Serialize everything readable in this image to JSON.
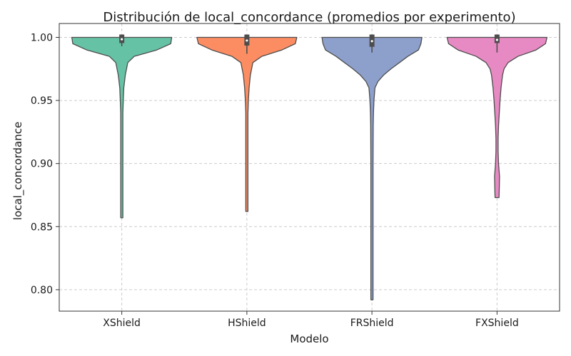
{
  "chart_data": {
    "type": "violin",
    "title": "Distribución de local_concordance (promedios por experimento)",
    "xlabel": "Modelo",
    "ylabel": "local_concordance",
    "ylim": [
      0.783,
      1.011
    ],
    "yticks": [
      0.8,
      0.85,
      0.9,
      0.95,
      1.0
    ],
    "ytick_labels": [
      "0.80",
      "0.85",
      "0.90",
      "0.95",
      "1.00"
    ],
    "grid": true,
    "categories": [
      "XShield",
      "HShield",
      "FRShield",
      "FXShield"
    ],
    "series": [
      {
        "category": "XShield",
        "color": "#66c2a5",
        "min": 0.857,
        "max": 1.0,
        "q1": 0.9955,
        "median": 0.9985,
        "q3": 1.0,
        "whisker_low": 0.993,
        "whisker_high": 1.0,
        "density_profile": [
          [
            1.0,
            1.0
          ],
          [
            0.995,
            0.98
          ],
          [
            0.99,
            0.7
          ],
          [
            0.985,
            0.25
          ],
          [
            0.98,
            0.12
          ],
          [
            0.97,
            0.07
          ],
          [
            0.96,
            0.04
          ],
          [
            0.95,
            0.03
          ],
          [
            0.94,
            0.015
          ],
          [
            0.93,
            0.008
          ],
          [
            0.9,
            0.006
          ],
          [
            0.87,
            0.004
          ],
          [
            0.857,
            0.004
          ]
        ]
      },
      {
        "category": "HShield",
        "color": "#fc8d62",
        "min": 0.862,
        "max": 1.0,
        "q1": 0.9935,
        "median": 0.9975,
        "q3": 1.0,
        "whisker_low": 0.987,
        "whisker_high": 1.0,
        "density_profile": [
          [
            1.0,
            1.0
          ],
          [
            0.995,
            0.97
          ],
          [
            0.99,
            0.7
          ],
          [
            0.985,
            0.3
          ],
          [
            0.98,
            0.12
          ],
          [
            0.97,
            0.07
          ],
          [
            0.96,
            0.045
          ],
          [
            0.95,
            0.03
          ],
          [
            0.94,
            0.018
          ],
          [
            0.93,
            0.012
          ],
          [
            0.9,
            0.008
          ],
          [
            0.87,
            0.006
          ],
          [
            0.862,
            0.006
          ]
        ]
      },
      {
        "category": "FRShield",
        "color": "#8da0cb",
        "min": 0.792,
        "max": 1.0,
        "q1": 0.9925,
        "median": 0.997,
        "q3": 1.0,
        "whisker_low": 0.988,
        "whisker_high": 1.0,
        "density_profile": [
          [
            1.0,
            1.0
          ],
          [
            0.995,
            0.98
          ],
          [
            0.99,
            0.93
          ],
          [
            0.985,
            0.72
          ],
          [
            0.98,
            0.55
          ],
          [
            0.975,
            0.38
          ],
          [
            0.97,
            0.23
          ],
          [
            0.965,
            0.12
          ],
          [
            0.96,
            0.06
          ],
          [
            0.95,
            0.04
          ],
          [
            0.94,
            0.03
          ],
          [
            0.93,
            0.025
          ],
          [
            0.9,
            0.02
          ],
          [
            0.85,
            0.02
          ],
          [
            0.8,
            0.02
          ],
          [
            0.792,
            0.02
          ]
        ]
      },
      {
        "category": "FXShield",
        "color": "#e78ac3",
        "min": 0.873,
        "max": 1.0,
        "q1": 0.9955,
        "median": 0.998,
        "q3": 1.0,
        "whisker_low": 0.988,
        "whisker_high": 1.0,
        "density_profile": [
          [
            1.0,
            1.0
          ],
          [
            0.995,
            0.97
          ],
          [
            0.99,
            0.78
          ],
          [
            0.985,
            0.42
          ],
          [
            0.98,
            0.22
          ],
          [
            0.975,
            0.14
          ],
          [
            0.97,
            0.11
          ],
          [
            0.96,
            0.08
          ],
          [
            0.95,
            0.06
          ],
          [
            0.94,
            0.045
          ],
          [
            0.93,
            0.03
          ],
          [
            0.92,
            0.02
          ],
          [
            0.91,
            0.015
          ],
          [
            0.9,
            0.03
          ],
          [
            0.89,
            0.05
          ],
          [
            0.88,
            0.045
          ],
          [
            0.873,
            0.04
          ]
        ]
      }
    ]
  }
}
